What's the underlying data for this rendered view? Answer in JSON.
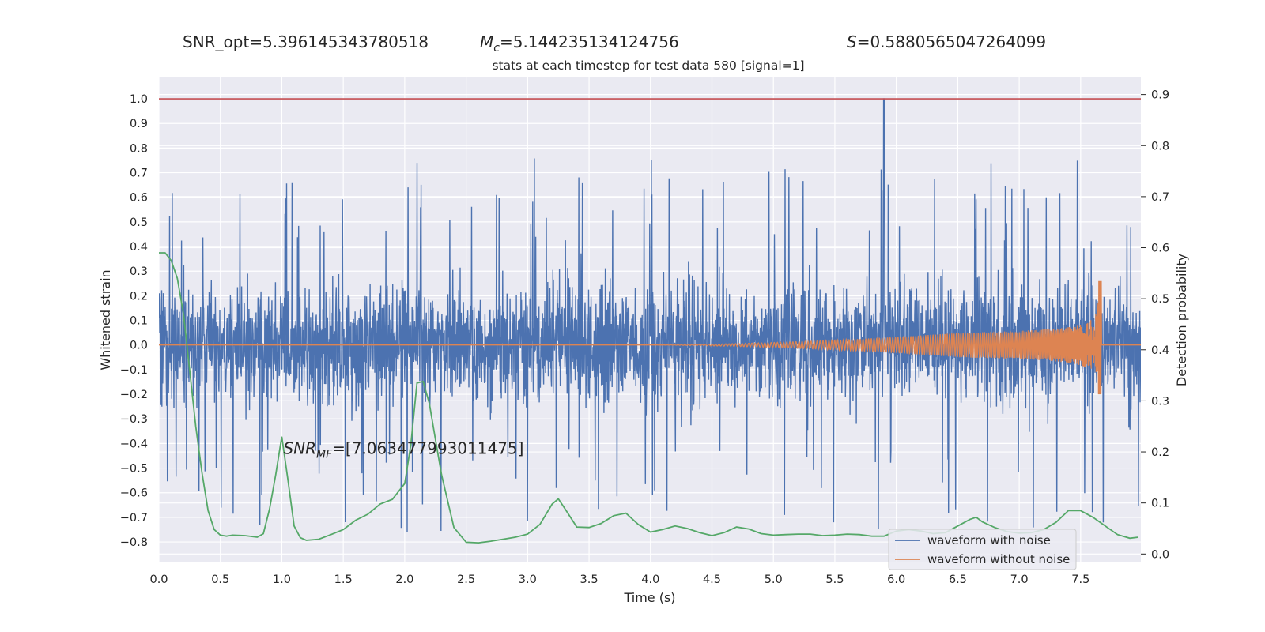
{
  "header": {
    "snr_opt": "SNR_opt=5.396145343780518",
    "mc_symbol": "M",
    "mc_sub": "c",
    "mc_value": "=5.144235134124756",
    "s_symbol": "S",
    "s_value": "=0.5880565047264099"
  },
  "chart_data": {
    "type": "line",
    "title": "stats at each timestep for test data 580 [signal=1]",
    "xlabel": "Time (s)",
    "ylabel": "Whitened strain",
    "y2label": "Detection probability",
    "xlim": [
      0.0,
      7.99
    ],
    "ylim": [
      -0.88,
      1.09
    ],
    "y2lim": [
      -0.015,
      0.935
    ],
    "xticks": [
      "0.0",
      "0.5",
      "1.0",
      "1.5",
      "2.0",
      "2.5",
      "3.0",
      "3.5",
      "4.0",
      "4.5",
      "5.0",
      "5.5",
      "6.0",
      "6.5",
      "7.0",
      "7.5"
    ],
    "yticks": [
      "1.0",
      "0.9",
      "0.8",
      "0.7",
      "0.6",
      "0.5",
      "0.4",
      "0.3",
      "0.2",
      "0.1",
      "0.0",
      "−0.1",
      "−0.2",
      "−0.3",
      "−0.4",
      "−0.5",
      "−0.6",
      "−0.7",
      "−0.8"
    ],
    "y2ticks": [
      "0.9",
      "0.8",
      "0.7",
      "0.6",
      "0.5",
      "0.4",
      "0.3",
      "0.2",
      "0.1",
      "0.0"
    ],
    "threshold": 1.0,
    "grid": true,
    "legend_placement": "lower-right",
    "annotation": {
      "sym": "SNR",
      "sub": "MF",
      "text": "=[7.063477993011475]",
      "x": 1.0,
      "y": -0.42
    },
    "colors": {
      "noise": "#4c72b0",
      "clean": "#dd8452",
      "prob": "#55a868",
      "threshold": "#c44e52",
      "bg": "#eaeaf2",
      "grid": "#ffffff"
    },
    "series": [
      {
        "name": "waveform with noise",
        "axis": "left",
        "note": "whitened strain, dense noise band of roughly ±0.2 with spikes up to about +0.78 / −0.78; largest spike reaches 1.0 near t=5.9 s"
      },
      {
        "name": "waveform without noise",
        "axis": "left",
        "chirp": {
          "start": 4.0,
          "merger": 7.65,
          "end_amp_pos": 0.26,
          "end_amp_neg": -0.2
        }
      },
      {
        "name": "Detection probability",
        "axis": "right",
        "x": [
          0.0,
          0.05,
          0.1,
          0.15,
          0.2,
          0.25,
          0.3,
          0.35,
          0.4,
          0.45,
          0.5,
          0.55,
          0.6,
          0.7,
          0.8,
          0.85,
          0.9,
          0.95,
          1.0,
          1.05,
          1.1,
          1.15,
          1.2,
          1.3,
          1.4,
          1.5,
          1.6,
          1.7,
          1.8,
          1.9,
          2.0,
          2.05,
          2.1,
          2.15,
          2.2,
          2.25,
          2.3,
          2.4,
          2.5,
          2.6,
          2.7,
          2.8,
          2.9,
          3.0,
          3.1,
          3.2,
          3.25,
          3.3,
          3.4,
          3.5,
          3.6,
          3.7,
          3.8,
          3.9,
          4.0,
          4.1,
          4.2,
          4.3,
          4.4,
          4.5,
          4.6,
          4.7,
          4.8,
          4.9,
          5.0,
          5.1,
          5.2,
          5.3,
          5.4,
          5.5,
          5.6,
          5.7,
          5.8,
          5.9,
          6.0,
          6.1,
          6.2,
          6.3,
          6.4,
          6.5,
          6.6,
          6.65,
          6.7,
          6.8,
          6.9,
          7.0,
          7.1,
          7.2,
          7.3,
          7.4,
          7.45,
          7.5,
          7.6,
          7.7,
          7.8,
          7.9,
          7.97
        ],
        "y": [
          0.59,
          0.59,
          0.575,
          0.54,
          0.47,
          0.36,
          0.25,
          0.16,
          0.085,
          0.048,
          0.037,
          0.035,
          0.037,
          0.036,
          0.033,
          0.04,
          0.088,
          0.155,
          0.23,
          0.145,
          0.055,
          0.032,
          0.027,
          0.029,
          0.038,
          0.048,
          0.066,
          0.078,
          0.098,
          0.107,
          0.138,
          0.215,
          0.335,
          0.338,
          0.295,
          0.225,
          0.155,
          0.052,
          0.023,
          0.022,
          0.025,
          0.029,
          0.033,
          0.039,
          0.058,
          0.098,
          0.108,
          0.09,
          0.053,
          0.052,
          0.06,
          0.075,
          0.08,
          0.058,
          0.043,
          0.048,
          0.055,
          0.05,
          0.042,
          0.036,
          0.042,
          0.053,
          0.049,
          0.04,
          0.037,
          0.038,
          0.039,
          0.039,
          0.036,
          0.037,
          0.039,
          0.038,
          0.035,
          0.035,
          0.045,
          0.048,
          0.045,
          0.04,
          0.042,
          0.055,
          0.068,
          0.072,
          0.063,
          0.052,
          0.044,
          0.041,
          0.042,
          0.048,
          0.062,
          0.085,
          0.085,
          0.085,
          0.072,
          0.055,
          0.038,
          0.031,
          0.033
        ]
      }
    ]
  }
}
